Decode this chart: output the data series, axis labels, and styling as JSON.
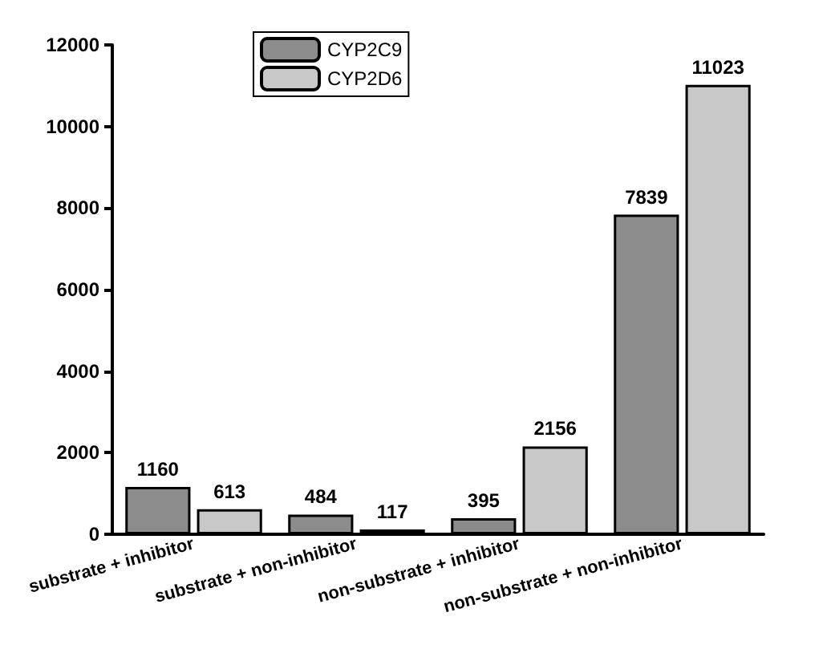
{
  "chart_data": {
    "type": "bar",
    "categories": [
      "substrate + inhibitor",
      "substrate + non-inhibitor",
      "non-substrate + inhibitor",
      "non-substrate + non-inhibitor"
    ],
    "series": [
      {
        "name": "CYP2C9",
        "color": "#8c8c8c",
        "values": [
          1160,
          484,
          395,
          7839
        ]
      },
      {
        "name": "CYP2D6",
        "color": "#c8c8c8",
        "values": [
          613,
          117,
          2156,
          11023
        ]
      }
    ],
    "ylim": [
      0,
      12000
    ],
    "yticks": [
      0,
      2000,
      4000,
      6000,
      8000,
      10000,
      12000
    ],
    "data_labels": true,
    "legend": "top left",
    "grid": false
  }
}
